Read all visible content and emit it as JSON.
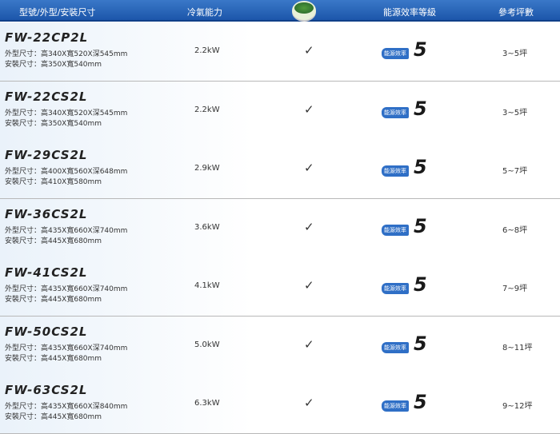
{
  "header": {
    "col1": "型號/外型/安裝尺寸",
    "col2": "冷氣能力",
    "col3_logo": "green-logo",
    "col4": "能源效率等級",
    "col5": "參考坪數"
  },
  "badge_label": "能源效率",
  "rows": [
    {
      "model": "FW-22CP2L",
      "outer": "外型尺寸：高340X寬520X深545mm",
      "install": "安裝尺寸：高350X寬540mm",
      "capacity": "2.2kW",
      "check": "✓",
      "grade": "5",
      "area": "3~5坪"
    },
    {
      "model": "FW-22CS2L",
      "outer": "外型尺寸：高340X寬520X深545mm",
      "install": "安裝尺寸：高350X寬540mm",
      "capacity": "2.2kW",
      "check": "✓",
      "grade": "5",
      "area": "3~5坪"
    },
    {
      "model": "FW-29CS2L",
      "outer": "外型尺寸：高400X寬560X深648mm",
      "install": "安裝尺寸：高410X寬580mm",
      "capacity": "2.9kW",
      "check": "✓",
      "grade": "5",
      "area": "5~7坪"
    },
    {
      "model": "FW-36CS2L",
      "outer": "外型尺寸：高435X寬660X深740mm",
      "install": "安裝尺寸：高445X寬680mm",
      "capacity": "3.6kW",
      "check": "✓",
      "grade": "5",
      "area": "6~8坪"
    },
    {
      "model": "FW-41CS2L",
      "outer": "外型尺寸：高435X寬660X深740mm",
      "install": "安裝尺寸：高445X寬680mm",
      "capacity": "4.1kW",
      "check": "✓",
      "grade": "5",
      "area": "7~9坪"
    },
    {
      "model": "FW-50CS2L",
      "outer": "外型尺寸：高435X寬660X深740mm",
      "install": "安裝尺寸：高445X寬680mm",
      "capacity": "5.0kW",
      "check": "✓",
      "grade": "5",
      "area": "8~11坪"
    },
    {
      "model": "FW-63CS2L",
      "outer": "外型尺寸：高435X寬660X深840mm",
      "install": "安裝尺寸：高445X寬680mm",
      "capacity": "6.3kW",
      "check": "✓",
      "grade": "5",
      "area": "9~12坪"
    }
  ]
}
